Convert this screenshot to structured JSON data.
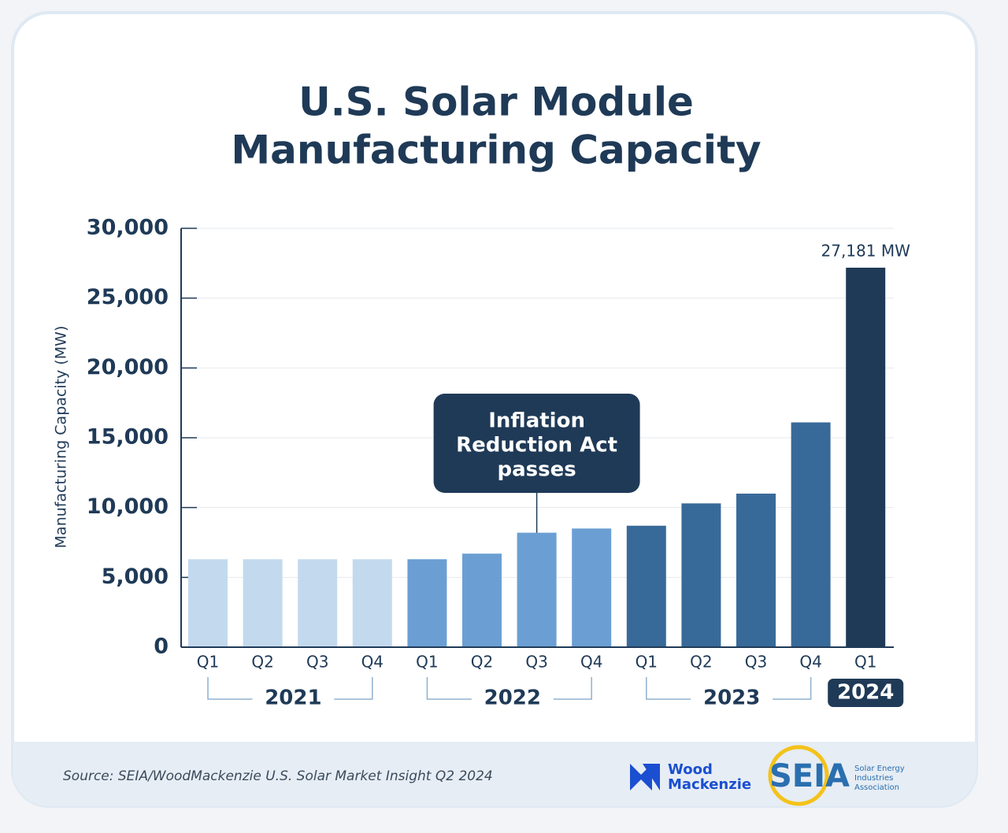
{
  "chart_data": {
    "type": "bar",
    "title": [
      "U.S. Solar Module",
      "Manufacturing Capacity"
    ],
    "y_label": "Manufacturing Capacity (MW)",
    "ylim": [
      0,
      30000
    ],
    "yticks": [
      0,
      {
        "value": 5000,
        "label": "5,000"
      },
      {
        "value": 10000,
        "label": "10,000"
      },
      {
        "value": 15000,
        "label": "15,000"
      },
      {
        "value": 20000,
        "label": "20,000"
      },
      {
        "value": 25000,
        "label": "25,000"
      },
      {
        "value": 30000,
        "label": "30,000"
      }
    ],
    "grid": true,
    "groups": [
      {
        "name": "2021",
        "color": "#c3d9ee",
        "categories": [
          "Q1",
          "Q2",
          "Q3",
          "Q4"
        ],
        "values": [
          6300,
          6300,
          6300,
          6300
        ]
      },
      {
        "name": "2022",
        "color": "#6b9fd3",
        "categories": [
          "Q1",
          "Q2",
          "Q3",
          "Q4"
        ],
        "values": [
          6300,
          6700,
          8200,
          8500
        ]
      },
      {
        "name": "2023",
        "color": "#386a99",
        "categories": [
          "Q1",
          "Q2",
          "Q3",
          "Q4"
        ],
        "values": [
          8700,
          10300,
          11000,
          16100
        ]
      },
      {
        "name": "2024",
        "color": "#1f3a57",
        "categories": [
          "Q1"
        ],
        "values": [
          27181
        ],
        "value_labels": [
          "27,181 MW"
        ]
      }
    ],
    "annotation": [
      "Inflation",
      "Reduction Act",
      "passes"
    ],
    "source": "Source: SEIA/WoodMackenzie U.S. Solar Market Insight Q2 2024",
    "logos": {
      "wood_mackenzie": [
        "Wood",
        "Mackenzie"
      ],
      "seia": "SEIA",
      "seia_full": [
        "Solar Energy",
        "Industries",
        "Association"
      ]
    }
  }
}
